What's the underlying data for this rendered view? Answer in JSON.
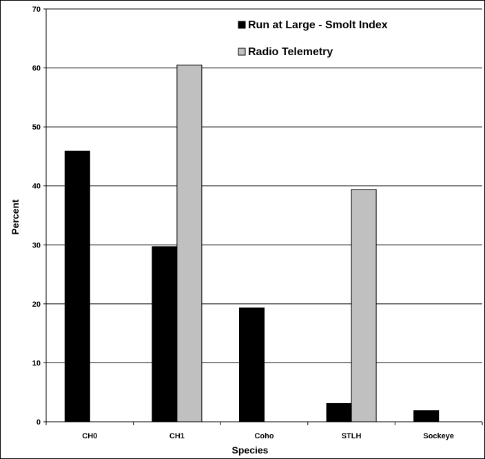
{
  "chart_data": {
    "type": "bar",
    "title": "",
    "xlabel": "Species",
    "ylabel": "Percent",
    "categories": [
      "CH0",
      "CH1",
      "Coho",
      "STLH",
      "Sockeye"
    ],
    "series": [
      {
        "name": "Run at Large - Smolt Index",
        "color": "#000000",
        "values": [
          45.9,
          29.7,
          19.3,
          3.1,
          1.9
        ]
      },
      {
        "name": "Radio Telemetry",
        "color": "#c0c0c0",
        "values": [
          null,
          60.5,
          null,
          39.4,
          null
        ]
      }
    ],
    "ylim": [
      0,
      70
    ],
    "yticks": [
      0,
      10,
      20,
      30,
      40,
      50,
      60,
      70
    ],
    "grid": true,
    "legend_position": "top-right"
  }
}
